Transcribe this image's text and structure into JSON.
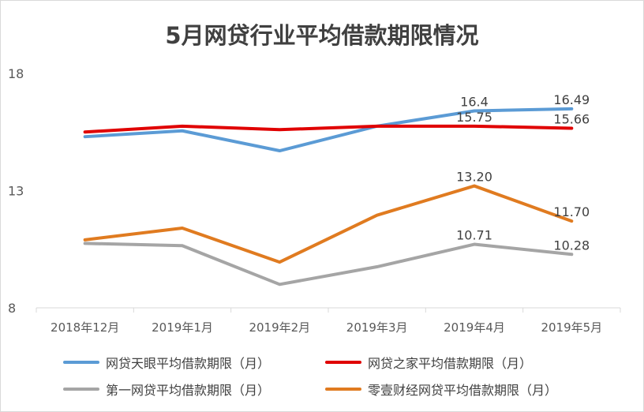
{
  "chart_data": {
    "type": "line",
    "title": "5月网贷行业平均借款期限情况",
    "categories": [
      "2018年12月",
      "2019年1月",
      "2019年2月",
      "2019年3月",
      "2019年4月",
      "2019年5月"
    ],
    "ylim": [
      8,
      18
    ],
    "yticks": [
      "8",
      "13",
      "18"
    ],
    "grid": false,
    "legend_position": "bottom",
    "series": [
      {
        "name": "网贷天眼平均借款期限（月）",
        "color": "#5b9bd5",
        "values": [
          15.3,
          15.55,
          14.7,
          15.75,
          16.4,
          16.49
        ],
        "labels": [
          "",
          "",
          "",
          "",
          "16.4",
          "16.49"
        ]
      },
      {
        "name": "网贷之家平均借款期限（月）",
        "color": "#e00000",
        "values": [
          15.5,
          15.75,
          15.6,
          15.75,
          15.75,
          15.66
        ],
        "labels": [
          "",
          "",
          "",
          "",
          "15.75",
          "15.66"
        ]
      },
      {
        "name": "第一网贷平均借款期限（月）",
        "color": "#a5a5a5",
        "values": [
          10.75,
          10.65,
          9.0,
          9.75,
          10.71,
          10.28
        ],
        "labels": [
          "",
          "",
          "",
          "",
          "10.71",
          "10.28"
        ]
      },
      {
        "name": "零壹财经网贷平均借款期限（月）",
        "color": "#e07b20",
        "values": [
          10.9,
          11.4,
          9.95,
          11.95,
          13.2,
          11.7
        ],
        "labels": [
          "",
          "",
          "",
          "",
          "13.20",
          "11.70"
        ]
      }
    ]
  }
}
